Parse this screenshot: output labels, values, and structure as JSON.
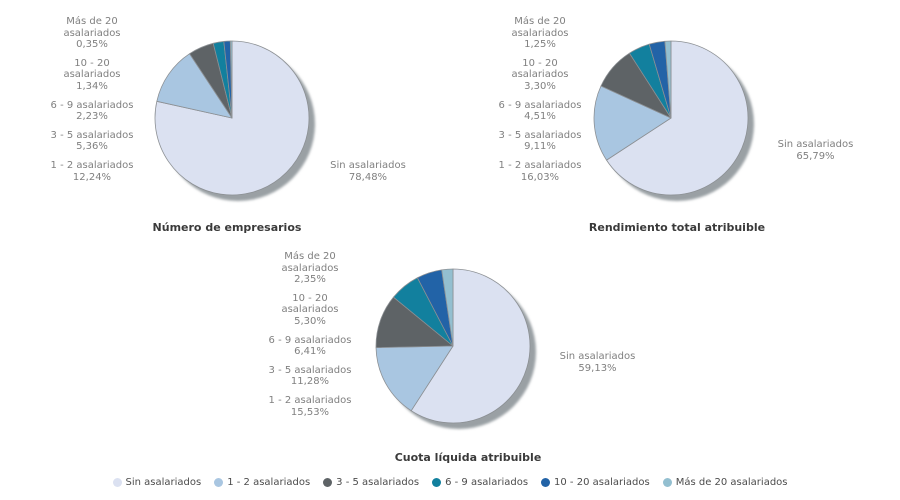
{
  "page": {
    "background": "#ffffff"
  },
  "palette": {
    "Sin asalariados": "#dbe1f1",
    "1 - 2 asalariados": "#a9c6e1",
    "3 - 5 asalariados": "#5e6366",
    "6 - 9 asalariados": "#12809e",
    "10 - 20 asalariados": "#2263a7",
    "Más de 20 asalariados": "#93bfd0"
  },
  "wrapped_labels": {
    "Más de 20 asalariados": "Más de 20\nasalariados",
    "10 - 20 asalariados": "10 - 20\nasalariados"
  },
  "slice_stroke": "#8c9094",
  "shadow_color": "#9aa0a4",
  "label_text_color": "#808080",
  "legend": {
    "items": [
      "Sin asalariados",
      "1 - 2 asalariados",
      "3 - 5 asalariados",
      "6 - 9 asalariados",
      "10 - 20 asalariados",
      "Más de 20 asalariados"
    ]
  },
  "chart_data": [
    {
      "type": "pie",
      "title": "Número de empresarios",
      "legend_position": "bottom",
      "slices": [
        {
          "label": "Sin asalariados",
          "value": 78.48,
          "pct_label": "78,48%"
        },
        {
          "label": "1 - 2 asalariados",
          "value": 12.24,
          "pct_label": "12,24%"
        },
        {
          "label": "3 - 5 asalariados",
          "value": 5.36,
          "pct_label": "5,36%"
        },
        {
          "label": "6 - 9 asalariados",
          "value": 2.23,
          "pct_label": "2,23%"
        },
        {
          "label": "10 - 20 asalariados",
          "value": 1.34,
          "pct_label": "1,34%"
        },
        {
          "label": "Más de 20 asalariados",
          "value": 0.35,
          "pct_label": "0,35%"
        }
      ]
    },
    {
      "type": "pie",
      "title": "Rendimiento total atribuible",
      "legend_position": "bottom",
      "slices": [
        {
          "label": "Sin asalariados",
          "value": 65.79,
          "pct_label": "65,79%"
        },
        {
          "label": "1 - 2 asalariados",
          "value": 16.03,
          "pct_label": "16,03%"
        },
        {
          "label": "3 - 5 asalariados",
          "value": 9.11,
          "pct_label": "9,11%"
        },
        {
          "label": "6 - 9 asalariados",
          "value": 4.51,
          "pct_label": "4,51%"
        },
        {
          "label": "10 - 20 asalariados",
          "value": 3.3,
          "pct_label": "3,30%"
        },
        {
          "label": "Más de 20 asalariados",
          "value": 1.25,
          "pct_label": "1,25%"
        }
      ]
    },
    {
      "type": "pie",
      "title": "Cuota líquida atribuible",
      "legend_position": "bottom",
      "slices": [
        {
          "label": "Sin asalariados",
          "value": 59.13,
          "pct_label": "59,13%"
        },
        {
          "label": "1 - 2 asalariados",
          "value": 15.53,
          "pct_label": "15,53%"
        },
        {
          "label": "3 - 5 asalariados",
          "value": 11.28,
          "pct_label": "11,28%"
        },
        {
          "label": "6 - 9 asalariados",
          "value": 6.41,
          "pct_label": "6,41%"
        },
        {
          "label": "10 - 20 asalariados",
          "value": 5.3,
          "pct_label": "5,30%"
        },
        {
          "label": "Más de 20 asalariados",
          "value": 2.35,
          "pct_label": "2,35%"
        }
      ]
    }
  ]
}
